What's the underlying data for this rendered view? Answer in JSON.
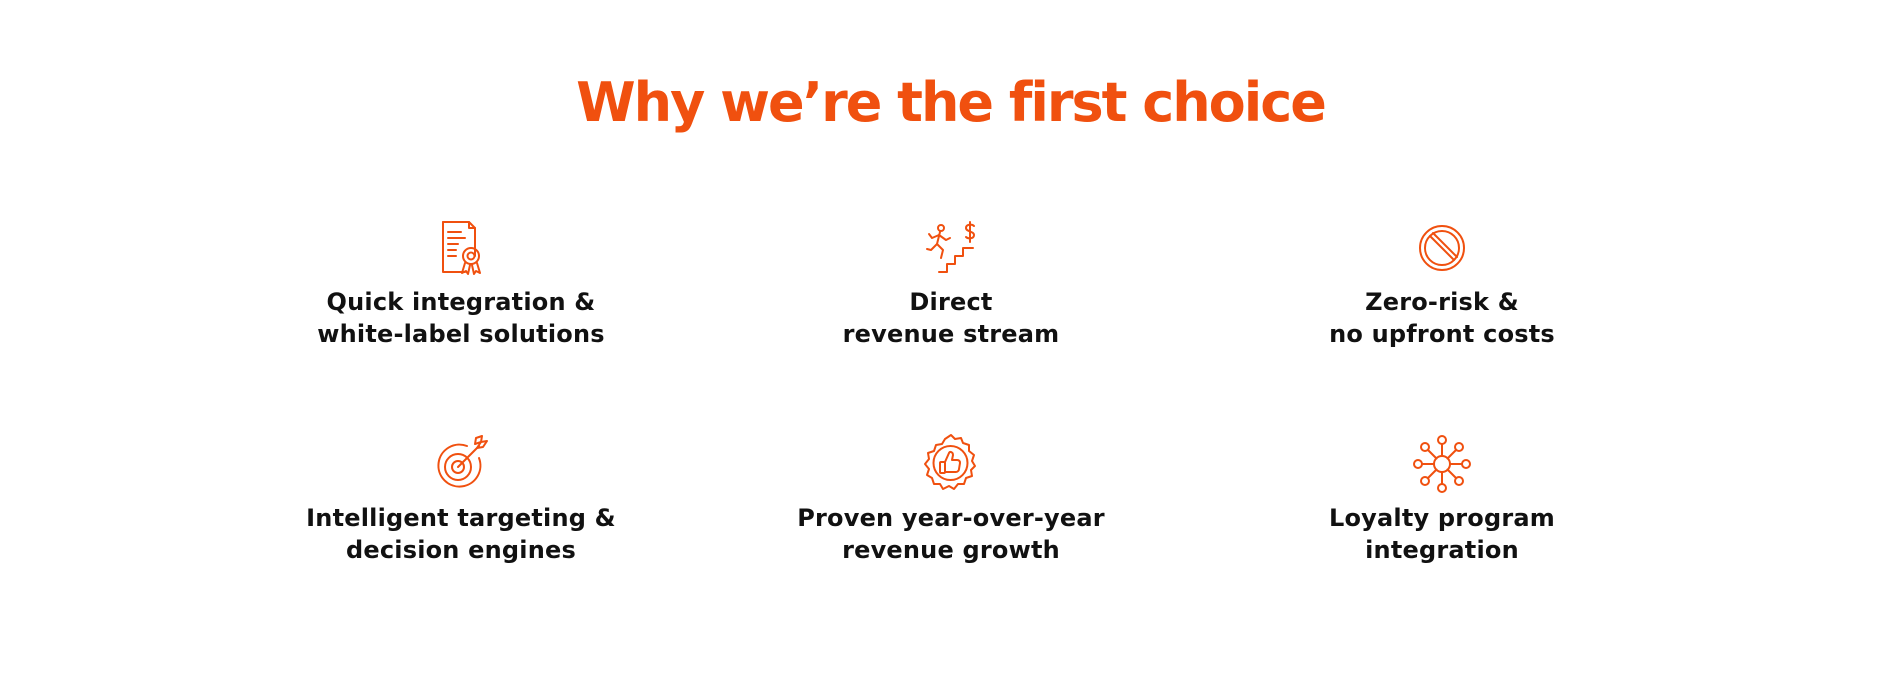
{
  "section": {
    "title": "Why we’re the first choice",
    "accent_color": "#F0500F",
    "features": [
      {
        "icon": "certificate-icon",
        "line1": "Quick integration &",
        "line2": "white-label solutions"
      },
      {
        "icon": "climbing-stairs-dollar-icon",
        "line1": "Direct",
        "line2": "revenue stream"
      },
      {
        "icon": "prohibited-icon",
        "line1": "Zero-risk &",
        "line2": "no upfront costs"
      },
      {
        "icon": "target-icon",
        "line1": "Intelligent targeting &",
        "line2": "decision engines"
      },
      {
        "icon": "thumbs-up-badge-icon",
        "line1": "Proven year-over-year",
        "line2": "revenue growth"
      },
      {
        "icon": "network-hub-icon",
        "line1": "Loyalty program",
        "line2": "integration"
      }
    ]
  }
}
